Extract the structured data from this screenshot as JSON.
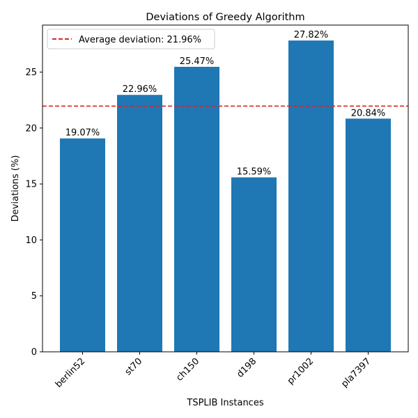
{
  "chart_data": {
    "type": "bar",
    "title": "Deviations of Greedy Algorithm",
    "xlabel": "TSPLIB Instances",
    "ylabel": "Deviations (%)",
    "categories": [
      "berlin52",
      "st70",
      "ch150",
      "d198",
      "pr1002",
      "pla7397"
    ],
    "values": [
      19.07,
      22.96,
      25.47,
      15.59,
      27.82,
      20.84
    ],
    "data_labels": [
      "19.07%",
      "22.96%",
      "25.47%",
      "15.59%",
      "27.82%",
      "20.84%"
    ],
    "ylim": [
      0,
      29.2
    ],
    "yticks": [
      0,
      5,
      10,
      15,
      20,
      25
    ],
    "bar_color": "#1f77b4",
    "reference_line": {
      "value": 21.96,
      "label": "Average deviation: 21.96%",
      "color": "#d62728",
      "style": "dashed"
    },
    "legend_position": "top-left",
    "grid": false
  }
}
